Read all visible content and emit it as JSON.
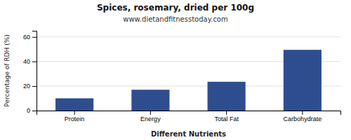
{
  "chart_data": {
    "type": "bar",
    "title": "Spices, rosemary, dried per 100g",
    "subtitle": "www.dietandfitnesstoday.com",
    "xlabel": "Different Nutrients",
    "ylabel": "Percentage of RDH (%)",
    "categories": [
      "Protein",
      "Energy",
      "Total Fat",
      "Carbohydrate"
    ],
    "values": [
      10,
      17,
      23.5,
      49.5
    ],
    "color": "#2e4d8e",
    "ylim": [
      0,
      65
    ],
    "yticks": [
      0,
      20,
      40,
      60
    ],
    "grid": true
  }
}
